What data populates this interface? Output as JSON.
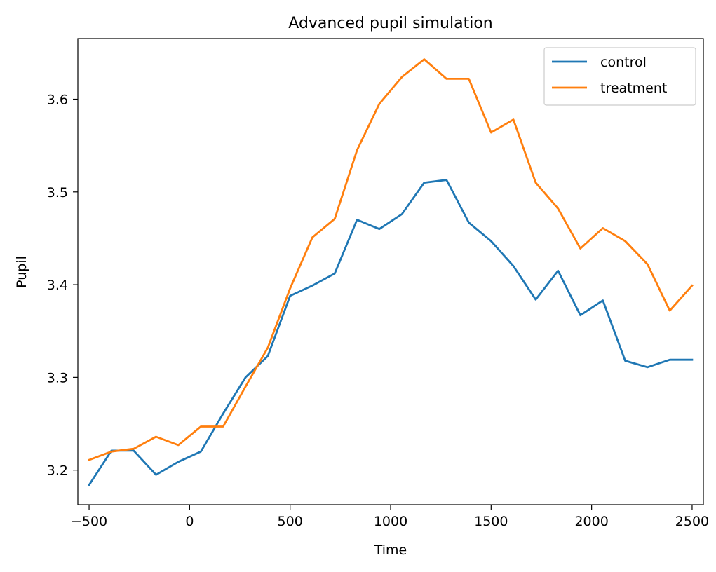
{
  "chart_data": {
    "type": "line",
    "title": "Advanced pupil simulation",
    "xlabel": "Time",
    "ylabel": "Pupil",
    "xlim": [
      -556,
      2556
    ],
    "ylim": [
      3.1627,
      3.6654
    ],
    "xticks": [
      -500,
      0,
      500,
      1000,
      1500,
      2000,
      2500
    ],
    "xtick_labels": [
      "−500",
      "0",
      "500",
      "1000",
      "1500",
      "2000",
      "2500"
    ],
    "yticks": [
      3.2,
      3.3,
      3.4,
      3.5,
      3.6
    ],
    "ytick_labels": [
      "3.2",
      "3.3",
      "3.4",
      "3.5",
      "3.6"
    ],
    "grid": false,
    "legend_position": "upper right",
    "x": [
      -500,
      -389,
      -278,
      -167,
      -56,
      56,
      167,
      278,
      389,
      500,
      611,
      722,
      833,
      944,
      1056,
      1167,
      1278,
      1389,
      1500,
      1611,
      1722,
      1833,
      1944,
      2056,
      2167,
      2278,
      2389,
      2500
    ],
    "series": [
      {
        "name": "control",
        "color": "#1f77b4",
        "values": [
          3.184,
          3.221,
          3.221,
          3.195,
          3.209,
          3.22,
          3.261,
          3.3,
          3.323,
          3.388,
          3.399,
          3.412,
          3.47,
          3.46,
          3.476,
          3.51,
          3.513,
          3.467,
          3.447,
          3.42,
          3.384,
          3.415,
          3.367,
          3.383,
          3.318,
          3.311,
          3.319,
          3.319
        ]
      },
      {
        "name": "treatment",
        "color": "#ff7f0e",
        "values": [
          3.211,
          3.22,
          3.223,
          3.236,
          3.227,
          3.247,
          3.247,
          3.29,
          3.332,
          3.396,
          3.451,
          3.471,
          3.545,
          3.595,
          3.624,
          3.643,
          3.622,
          3.622,
          3.564,
          3.578,
          3.51,
          3.482,
          3.439,
          3.461,
          3.447,
          3.422,
          3.372,
          3.399
        ]
      }
    ]
  }
}
